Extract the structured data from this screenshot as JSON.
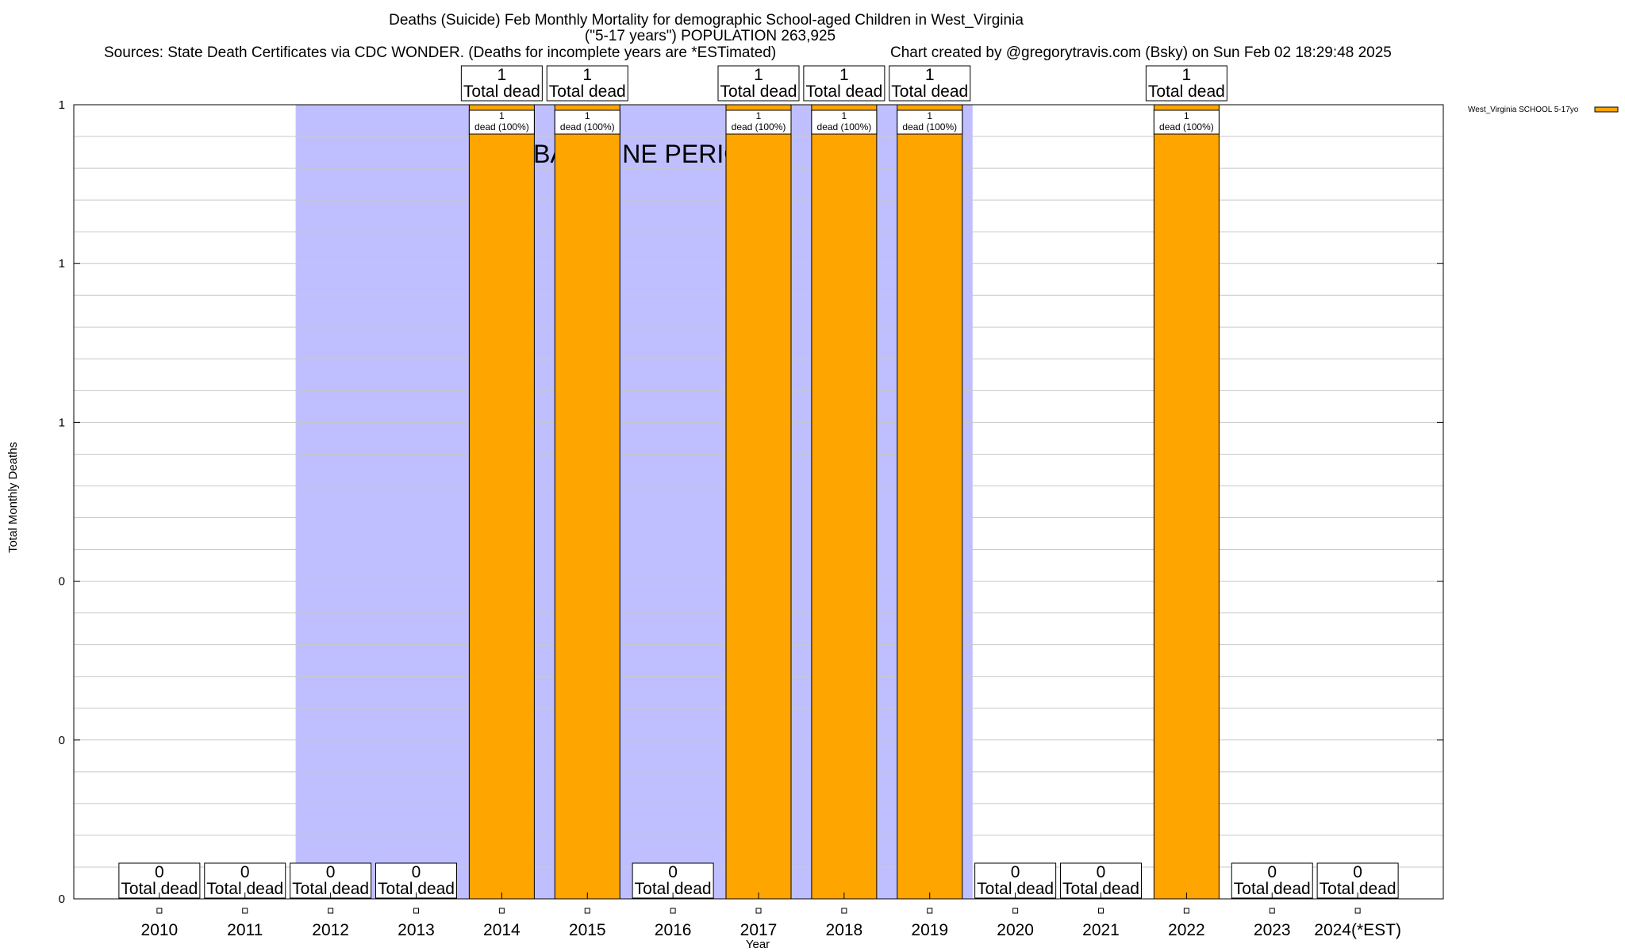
{
  "chart_data": {
    "type": "bar",
    "title": "Deaths (Suicide) Feb Monthly Mortality for demographic School-aged Children in West_Virginia",
    "subtitle": "(\"5-17 years\") POPULATION 263,925",
    "sources": "Sources: State Death Certificates via CDC WONDER. (Deaths for incomplete years are *ESTimated)",
    "credit": "Chart created by @gregorytravis.com (Bsky) on Sun Feb 02 18:29:48 2025",
    "xlabel": "Year",
    "ylabel": "Total Monthly Deaths",
    "categories": [
      "2010",
      "2011",
      "2012",
      "2013",
      "2014",
      "2015",
      "2016",
      "2017",
      "2018",
      "2019",
      "2020",
      "2021",
      "2022",
      "2023",
      "2024(*EST)"
    ],
    "series": [
      {
        "name": "West_Virginia SCHOOL 5-17yo",
        "color": "#ffa500",
        "values": [
          0,
          0,
          0,
          0,
          1,
          1,
          0,
          1,
          1,
          1,
          0,
          0,
          1,
          0,
          0
        ]
      }
    ],
    "total_labels": [
      "0\nTotal dead",
      "0\nTotal dead",
      "0\nTotal dead",
      "0\nTotal dead",
      "1\nTotal dead",
      "1\nTotal dead",
      "0\nTotal dead",
      "1\nTotal dead",
      "1\nTotal dead",
      "1\nTotal dead",
      "0\nTotal dead",
      "0\nTotal dead",
      "1\nTotal dead",
      "0\nTotal dead",
      "0\nTotal dead"
    ],
    "bar_labels": [
      "",
      "",
      "",
      "",
      "1\ndead (100%)",
      "1\ndead (100%)",
      "",
      "1\ndead (100%)",
      "1\ndead (100%)",
      "1\ndead (100%)",
      "",
      "",
      "1\ndead (100%)",
      "",
      ""
    ],
    "ylim": [
      0,
      1
    ],
    "ytick_labels": [
      "0",
      "0",
      "0",
      "1",
      "1",
      "1"
    ],
    "baseline": {
      "label": "BASELINE PERIOD",
      "start": "2012",
      "end": "2019",
      "color": "#bfbfff"
    },
    "grid": true,
    "legend_position": "top-right"
  }
}
